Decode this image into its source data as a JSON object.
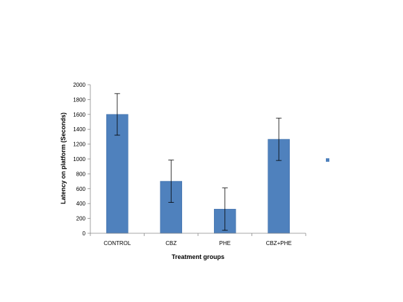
{
  "chart_data": {
    "type": "bar",
    "categories": [
      "CONTROL",
      "CBZ",
      "PHE",
      "CBZ+PHE"
    ],
    "values": [
      1600,
      700,
      325,
      1265
    ],
    "errors": [
      280,
      285,
      285,
      285
    ],
    "xlabel": "Treatment groups",
    "ylabel": "Latency on platform (Seconds)",
    "ylim": [
      0,
      2000
    ],
    "yticks": [
      0,
      200,
      400,
      600,
      800,
      1000,
      1200,
      1400,
      1600,
      1800,
      2000
    ],
    "grid": false,
    "legend": "right",
    "colors": {
      "bar": "#4f81bd",
      "bar_edge": "#3e6ea8",
      "axis": "#888888",
      "error_bar": "#000000",
      "legend_marker": "#4f81bd"
    }
  }
}
